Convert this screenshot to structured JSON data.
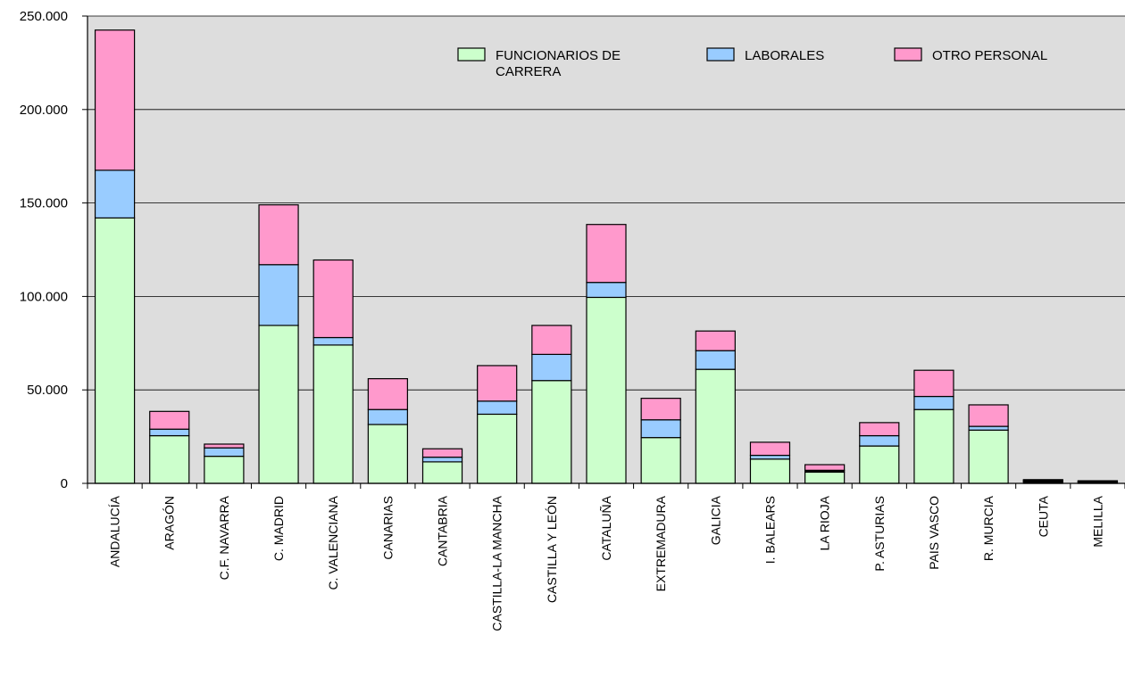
{
  "chart_data": {
    "type": "bar",
    "stacked": true,
    "title": "",
    "xlabel": "",
    "ylabel": "",
    "ylim": [
      0,
      250000
    ],
    "y_ticks": [
      "0",
      "50.000",
      "100.000",
      "150.000",
      "200.000",
      "250.000"
    ],
    "y_tick_values": [
      0,
      50000,
      100000,
      150000,
      200000,
      250000
    ],
    "grid": true,
    "legend_position": "top-right",
    "plot_background": "#dddddd",
    "categories": [
      "ANDALUCÍA",
      "ARAGÓN",
      "C.F. NAVARRA",
      "C. MADRID",
      "C. VALENCIANA",
      "CANARIAS",
      "CANTABRIA",
      "CASTILLA-LA MANCHA",
      "CASTILLA Y LEÓN",
      "CATALUÑA",
      "EXTREMADURA",
      "GALICIA",
      "I. BALEARS",
      "LA RIOJA",
      "P. ASTURIAS",
      "PAIS VASCO",
      "R. MURCIA",
      "CEUTA",
      "MELILLA"
    ],
    "series": [
      {
        "name": "FUNCIONARIOS DE CARRERA",
        "legend_lines": [
          "FUNCIONARIOS DE",
          "CARRERA"
        ],
        "color": "#ccffcc",
        "values": [
          142000,
          25500,
          14500,
          84500,
          74000,
          31500,
          11500,
          37000,
          55000,
          99500,
          24500,
          61000,
          13000,
          6000,
          20000,
          39500,
          28500,
          1000,
          800
        ]
      },
      {
        "name": "LABORALES",
        "legend_lines": [
          "LABORALES"
        ],
        "color": "#99ccff",
        "values": [
          25500,
          3500,
          4500,
          32500,
          4000,
          8000,
          2500,
          7000,
          14000,
          8000,
          9500,
          10000,
          2000,
          1000,
          5500,
          7000,
          2000,
          500,
          300
        ]
      },
      {
        "name": "OTRO PERSONAL",
        "legend_lines": [
          "OTRO PERSONAL"
        ],
        "color": "#ff99cc",
        "values": [
          75000,
          9500,
          2000,
          32000,
          41500,
          16500,
          4500,
          19000,
          15500,
          31000,
          11500,
          10500,
          7000,
          3000,
          7000,
          14000,
          11500,
          500,
          300
        ]
      }
    ]
  }
}
